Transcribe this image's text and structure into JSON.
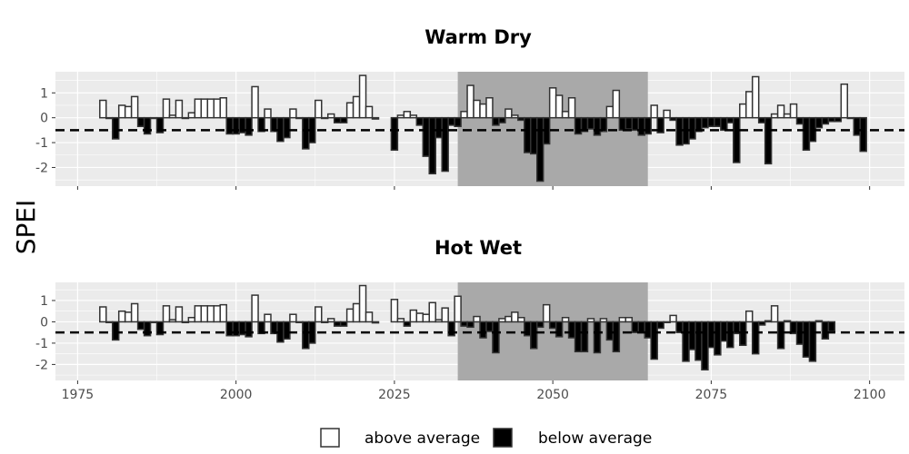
{
  "chart_data": {
    "type": "bar",
    "ylabel": "SPEI",
    "x_ticks": [
      1975,
      2000,
      2025,
      2050,
      2075,
      2100
    ],
    "y_ticks": [
      -2,
      -1,
      0,
      1
    ],
    "xlim": [
      1971.5,
      2105.5
    ],
    "ylim": [
      -2.75,
      1.85
    ],
    "threshold": -0.5,
    "colors": {
      "panel_bg": "#ebebeb",
      "grid": "#ffffff",
      "highlight": "#a9a9a9",
      "above": "#ffffff",
      "below": "#000000",
      "bar_outline": "#333333"
    },
    "legend": [
      {
        "label": "above average",
        "color": "#ffffff"
      },
      {
        "label": "below average",
        "color": "#000000"
      }
    ],
    "panels": [
      {
        "title": "Warm Dry",
        "highlight_range": [
          2035,
          2065
        ],
        "historical": {
          "start": 1979,
          "values": [
            0.7,
            0.0,
            -0.85,
            0.5,
            0.45,
            0.85,
            -0.35,
            -0.65,
            0.0,
            -0.6,
            0.75,
            0.1,
            0.7,
            0.0,
            0.2,
            0.75,
            0.75,
            0.75,
            0.75,
            0.8,
            -0.65,
            -0.65,
            -0.6,
            -0.7,
            1.25,
            -0.55,
            0.35,
            -0.55,
            -0.95,
            -0.8,
            0.35,
            0.0,
            -1.25,
            -1.0,
            0.7,
            0.0,
            0.15,
            -0.2,
            -0.2,
            0.6,
            0.85,
            1.7,
            0.45,
            -0.05
          ]
        },
        "projection": {
          "start": 2025,
          "values": [
            -1.3,
            0.1,
            0.25,
            0.1,
            -0.3,
            -1.55,
            -2.25,
            -0.8,
            -2.15,
            -0.3,
            -0.35,
            0.25,
            1.3,
            0.7,
            0.55,
            0.8,
            -0.3,
            -0.2,
            0.35,
            0.1,
            -0.1,
            -1.4,
            -1.45,
            -2.55,
            -1.05,
            1.2,
            0.9,
            0.25,
            0.8,
            -0.65,
            -0.55,
            -0.45,
            -0.7,
            -0.55,
            0.45,
            1.1,
            -0.5,
            -0.45,
            -0.5,
            -0.7,
            -0.65,
            0.5,
            -0.6,
            0.3,
            -0.1,
            -1.1,
            -1.05,
            -0.85,
            -0.55,
            -0.4,
            -0.35,
            -0.35,
            -0.5,
            -0.2,
            -1.8,
            0.55,
            1.05,
            1.65,
            -0.2,
            -1.85,
            0.15,
            0.5,
            0.15,
            0.55,
            -0.25,
            -1.3,
            -0.95,
            -0.4,
            -0.25,
            -0.15,
            -0.15,
            1.35,
            0.0,
            -0.7,
            -1.35
          ]
        }
      },
      {
        "title": "Hot Wet",
        "highlight_range": [
          2035,
          2065
        ],
        "historical": {
          "start": 1979,
          "values": [
            0.7,
            0.0,
            -0.85,
            0.5,
            0.45,
            0.85,
            -0.35,
            -0.65,
            0.0,
            -0.6,
            0.75,
            0.1,
            0.7,
            0.0,
            0.2,
            0.75,
            0.75,
            0.75,
            0.75,
            0.8,
            -0.65,
            -0.65,
            -0.6,
            -0.7,
            1.25,
            -0.55,
            0.35,
            -0.55,
            -0.95,
            -0.8,
            0.35,
            0.0,
            -1.25,
            -1.0,
            0.7,
            0.0,
            0.15,
            -0.2,
            -0.2,
            0.6,
            0.85,
            1.7,
            0.45,
            -0.05
          ]
        },
        "projection": {
          "start": 2025,
          "values": [
            1.05,
            0.15,
            -0.2,
            0.55,
            0.4,
            0.35,
            0.9,
            0.1,
            0.65,
            -0.65,
            1.2,
            -0.2,
            -0.25,
            0.25,
            -0.75,
            -0.45,
            -1.45,
            0.15,
            0.25,
            0.45,
            0.2,
            -0.65,
            -1.25,
            -0.25,
            0.8,
            -0.3,
            -0.7,
            0.2,
            -0.75,
            -1.4,
            -1.4,
            0.15,
            -1.45,
            0.15,
            -0.85,
            -1.4,
            0.2,
            0.2,
            -0.5,
            -0.5,
            -0.75,
            -1.75,
            -0.3,
            0.0,
            0.3,
            -0.5,
            -1.85,
            -1.3,
            -1.8,
            -2.25,
            -1.2,
            -1.55,
            -0.9,
            -1.2,
            -0.55,
            -1.1,
            0.5,
            -1.5,
            -0.15,
            0.05,
            0.75,
            -1.25,
            0.05,
            -0.55,
            -1.05,
            -1.65,
            -1.85,
            0.05,
            -0.8,
            -0.45
          ]
        }
      }
    ]
  }
}
